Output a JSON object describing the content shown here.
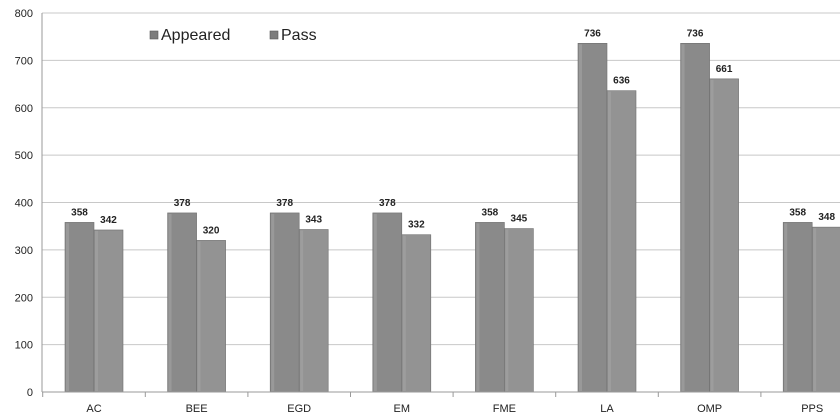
{
  "chart_data": {
    "type": "bar",
    "title": "",
    "xlabel": "",
    "ylabel": "",
    "ylim": [
      0,
      800
    ],
    "yticks": [
      "0",
      "100",
      "200",
      "300",
      "400",
      "500",
      "600",
      "700",
      "800"
    ],
    "grid": true,
    "legend_position": "top-left",
    "categories": [
      "AC",
      "BEE",
      "EGD",
      "EM",
      "FME",
      "LA",
      "OMP",
      "PPS"
    ],
    "series": [
      {
        "name": "Appeared",
        "values": [
          358,
          378,
          378,
          378,
          358,
          736,
          736,
          358
        ],
        "labels": [
          "358",
          "378",
          "378",
          "378",
          "358",
          "736",
          "736",
          "358"
        ],
        "color": "#8c8c8c"
      },
      {
        "name": "Pass",
        "values": [
          342,
          320,
          343,
          332,
          345,
          636,
          661,
          348
        ],
        "labels": [
          "342",
          "320",
          "343",
          "332",
          "345",
          "636",
          "661",
          "348"
        ],
        "color": "#8f8f8f"
      }
    ]
  }
}
